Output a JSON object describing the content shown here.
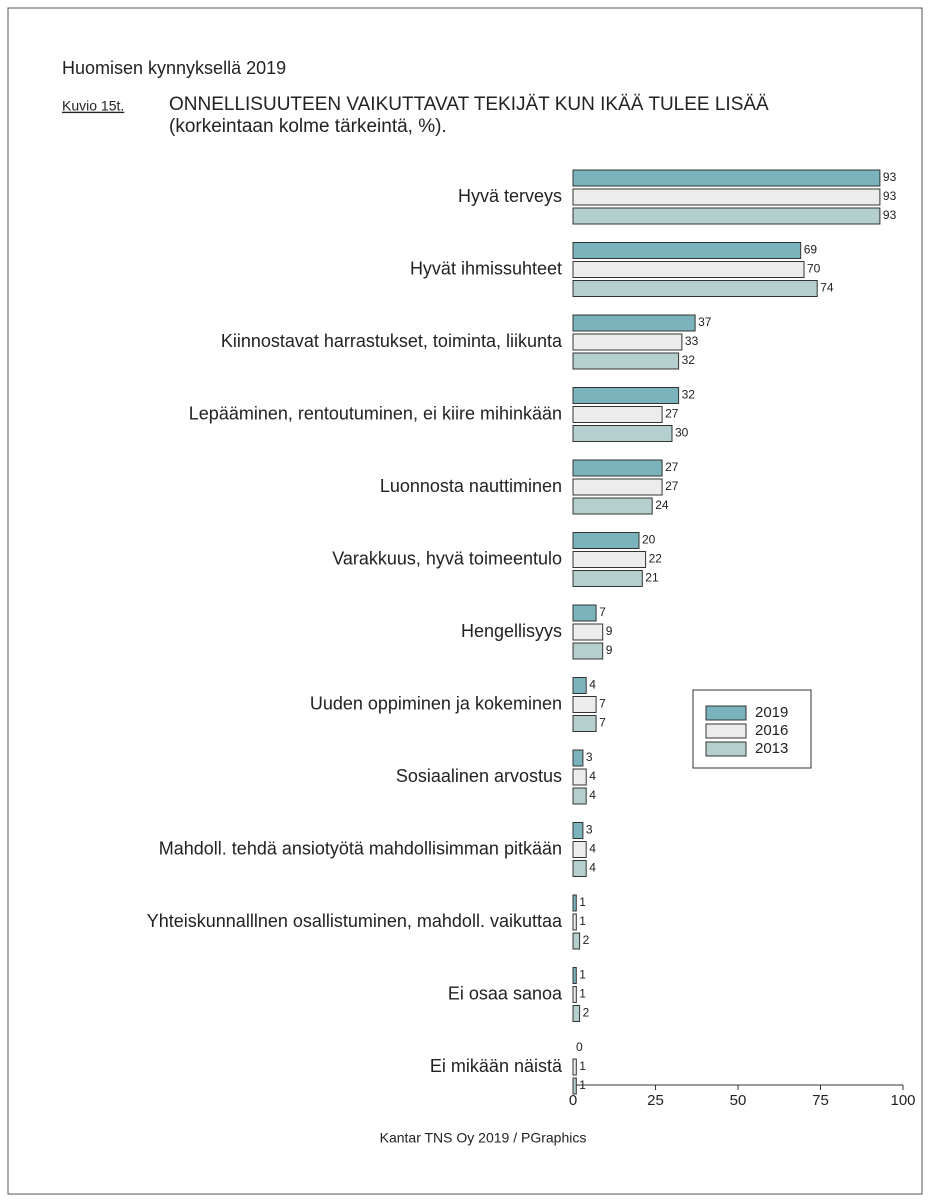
{
  "chart_data": {
    "type": "bar",
    "orientation": "horizontal",
    "header": "Huomisen kynnyksellä 2019",
    "figure_label": "Kuvio 15t.",
    "title": "ONNELLISUUTEEN VAIKUTTAVAT TEKIJÄT KUN IKÄÄ TULEE LISÄÄ",
    "subtitle": "(korkeintaan kolme tärkeintä, %).",
    "source": "Kantar TNS Oy 2019 / PGraphics",
    "categories": [
      "Hyvä terveys",
      "Hyvät ihmissuhteet",
      "Kiinnostavat harrastukset, toiminta, liikunta",
      "Lepääminen, rentoutuminen, ei kiire mihinkään",
      "Luonnosta nauttiminen",
      "Varakkuus, hyvä toimeentulo",
      "Hengellisyys",
      "Uuden oppiminen ja kokeminen",
      "Sosiaalinen arvostus",
      "Mahdoll. tehdä ansiotyötä mahdollisimman pitkään",
      "Yhteiskunnalllnen osallistuminen, mahdoll. vaikuttaa",
      "Ei osaa sanoa",
      "Ei mikään näistä"
    ],
    "series": [
      {
        "name": "2019",
        "color": "#7ab3bb",
        "values": [
          93,
          69,
          37,
          32,
          27,
          20,
          7,
          4,
          3,
          3,
          1,
          1,
          0
        ]
      },
      {
        "name": "2016",
        "color": "#ececec",
        "values": [
          93,
          70,
          33,
          27,
          27,
          22,
          9,
          7,
          4,
          4,
          1,
          1,
          1
        ]
      },
      {
        "name": "2013",
        "color": "#b5cfcf",
        "values": [
          93,
          74,
          32,
          30,
          24,
          21,
          9,
          7,
          4,
          4,
          2,
          2,
          1
        ]
      }
    ],
    "xlim": [
      0,
      100
    ],
    "xticks": [
      0,
      25,
      50,
      75,
      100
    ],
    "grid": false,
    "legend": "right"
  }
}
